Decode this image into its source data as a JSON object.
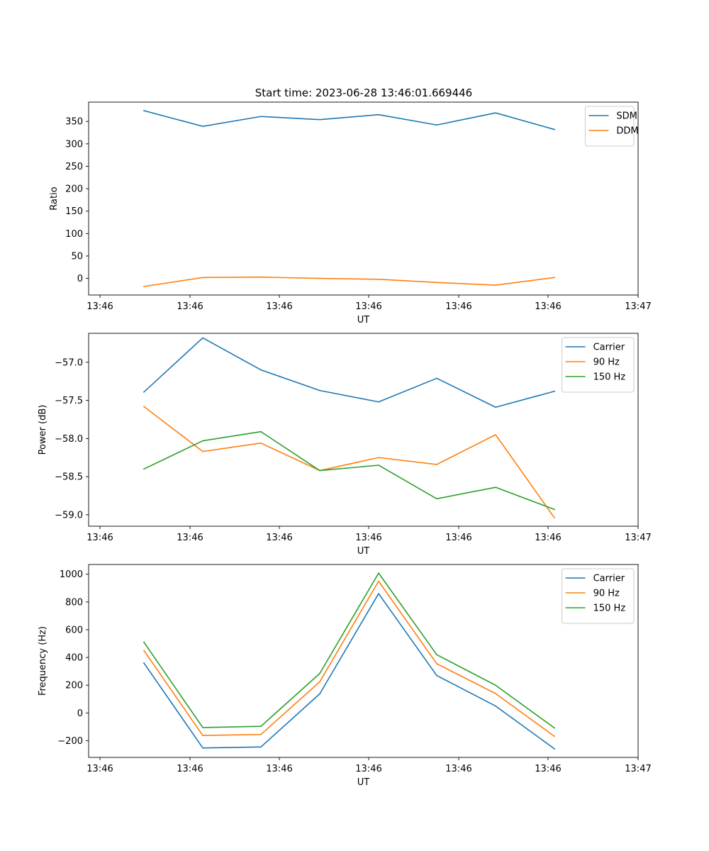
{
  "figure": {
    "title": "Start time: 2023-06-28 13:46:01.669446"
  },
  "chart_data": [
    {
      "type": "line",
      "xlabel": "UT",
      "ylabel": "Ratio",
      "x_ticks": [
        "13:46",
        "13:46",
        "13:46",
        "13:46",
        "13:46",
        "13:46",
        "13:47"
      ],
      "y_ticks": [
        0,
        50,
        100,
        150,
        200,
        250,
        300,
        350
      ],
      "ylim": [
        -37,
        393
      ],
      "grid": false,
      "legend": "top-right",
      "series": [
        {
          "name": "SDM",
          "color": "#1f77b4",
          "values": [
            374,
            339,
            361,
            354,
            365,
            342,
            369,
            332
          ]
        },
        {
          "name": "DDM",
          "color": "#ff7f0e",
          "values": [
            -18,
            2,
            3,
            0,
            -2,
            -9,
            -15,
            2
          ]
        }
      ]
    },
    {
      "type": "line",
      "xlabel": "UT",
      "ylabel": "Power (dB)",
      "x_ticks": [
        "13:46",
        "13:46",
        "13:46",
        "13:46",
        "13:46",
        "13:46",
        "13:47"
      ],
      "y_ticks": [
        -59.0,
        -58.5,
        -58.0,
        -57.5,
        -57.0
      ],
      "ylim": [
        -59.15,
        -56.62
      ],
      "grid": false,
      "legend": "top-right",
      "series": [
        {
          "name": "Carrier",
          "color": "#1f77b4",
          "values": [
            -57.39,
            -56.68,
            -57.1,
            -57.37,
            -57.52,
            -57.21,
            -57.59,
            -57.38
          ]
        },
        {
          "name": "90 Hz",
          "color": "#ff7f0e",
          "values": [
            -57.58,
            -58.17,
            -58.06,
            -58.42,
            -58.25,
            -58.34,
            -57.95,
            -59.04
          ]
        },
        {
          "name": "150 Hz",
          "color": "#2ca02c",
          "values": [
            -58.4,
            -58.03,
            -57.91,
            -58.42,
            -58.35,
            -58.79,
            -58.64,
            -58.93
          ]
        }
      ]
    },
    {
      "type": "line",
      "xlabel": "UT",
      "ylabel": "Frequency (Hz)",
      "x_ticks": [
        "13:46",
        "13:46",
        "13:46",
        "13:46",
        "13:46",
        "13:46",
        "13:47"
      ],
      "y_ticks": [
        -200,
        0,
        200,
        400,
        600,
        800,
        1000
      ],
      "ylim": [
        -320,
        1070
      ],
      "grid": false,
      "legend": "top-right",
      "series": [
        {
          "name": "Carrier",
          "color": "#1f77b4",
          "values": [
            360,
            -252,
            -245,
            138,
            860,
            270,
            50,
            -258
          ]
        },
        {
          "name": "90 Hz",
          "color": "#ff7f0e",
          "values": [
            450,
            -162,
            -155,
            225,
            950,
            355,
            140,
            -168
          ]
        },
        {
          "name": "150 Hz",
          "color": "#2ca02c",
          "values": [
            510,
            -105,
            -96,
            285,
            1008,
            420,
            200,
            -108
          ]
        }
      ]
    }
  ]
}
